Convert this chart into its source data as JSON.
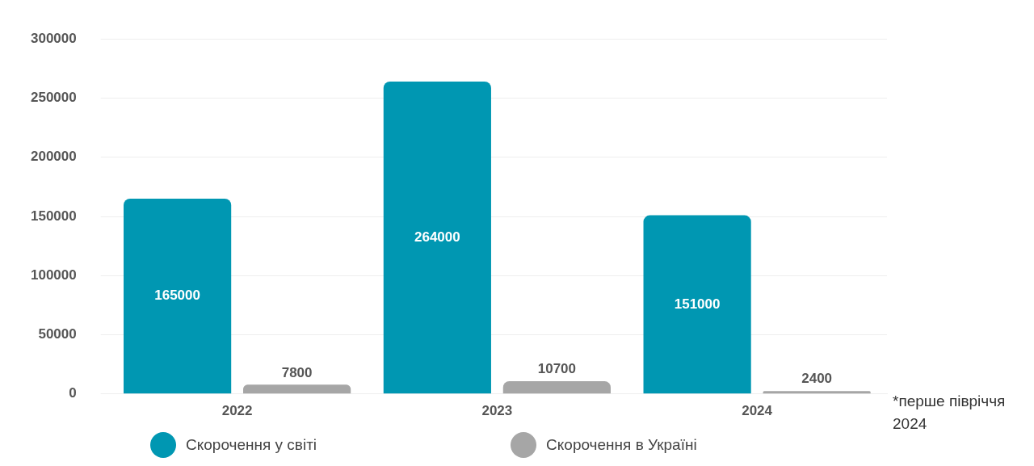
{
  "chart_data": {
    "type": "bar",
    "categories": [
      "2022",
      "2023",
      "2024"
    ],
    "series": [
      {
        "name": "Скорочення у світі",
        "color": "#0097b2",
        "values": [
          165000,
          264000,
          151000
        ]
      },
      {
        "name": "Скорочення в Україні",
        "color": "#a6a6a6",
        "values": [
          7800,
          10700,
          2400
        ]
      }
    ],
    "ylim": [
      0,
      300000
    ],
    "yticks": [
      0,
      50000,
      100000,
      150000,
      200000,
      250000,
      300000
    ],
    "grid": "y",
    "legend": "bottom",
    "data_labels": true,
    "annotations": [
      "*перше півріччя 2024"
    ]
  }
}
